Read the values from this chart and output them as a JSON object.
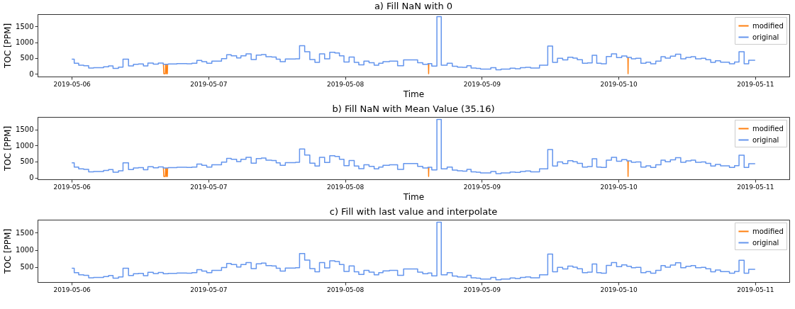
{
  "chart_data": [
    {
      "type": "step",
      "title": "a) Fill NaN with 0",
      "xlabel": "Time",
      "ylabel": "TOC [PPM]",
      "xlim": [
        "2019-05-05T18:00",
        "2019-05-11T06:00"
      ],
      "xticks": [
        "2019-05-06",
        "2019-05-07",
        "2019-05-08",
        "2019-05-09",
        "2019-05-10",
        "2019-05-11"
      ],
      "ylim": [
        -90,
        1890
      ],
      "yticks": [
        0,
        500,
        1000,
        1500
      ],
      "legend": "top right",
      "grid": false,
      "series": [
        {
          "name": "modified",
          "color": "#ff7f0e",
          "type": "line",
          "x": [
            "2019-05-06T16:06",
            "2019-05-06T16:10",
            "2019-05-06T16:26",
            "2019-05-06T16:30",
            "2019-05-06T16:33",
            "2019-05-06T16:36",
            "2019-05-06T16:39",
            "2019-05-06T16:47",
            "2019-05-06T16:50",
            "2019-05-06T16:53",
            "2019-05-08T14:38",
            "2019-05-08T14:40",
            "2019-05-08T14:42",
            "2019-05-08T14:45",
            "2019-05-10T01:39",
            "2019-05-10T01:41",
            "2019-05-10T01:43"
          ],
          "values": [
            300,
            0,
            0,
            300,
            null,
            300,
            0,
            0,
            300,
            null,
            320,
            0,
            320,
            null,
            520,
            0,
            520
          ]
        },
        {
          "name": "original",
          "color": "#6495ed",
          "type": "step",
          "x": [
            "2019-05-06T00:00",
            "2019-05-06T00:26",
            "2019-05-06T01:13",
            "2019-05-06T02:06",
            "2019-05-06T02:58",
            "2019-05-06T03:50",
            "2019-05-06T05:35",
            "2019-05-06T06:28",
            "2019-05-06T07:15",
            "2019-05-06T08:12",
            "2019-05-06T09:00",
            "2019-05-06T09:58",
            "2019-05-06T10:50",
            "2019-05-06T11:42",
            "2019-05-06T12:35",
            "2019-05-06T13:22",
            "2019-05-06T14:19",
            "2019-05-06T15:12",
            "2019-05-06T16:04",
            "2019-05-06T16:56",
            "2019-05-06T18:28",
            "2019-05-06T20:12",
            "2019-05-06T21:06",
            "2019-05-06T21:58",
            "2019-05-06T22:50",
            "2019-05-06T23:42",
            "2019-05-07T00:36",
            "2019-05-07T02:18",
            "2019-05-07T03:12",
            "2019-05-07T04:00",
            "2019-05-07T04:57",
            "2019-05-07T05:42",
            "2019-05-07T06:36",
            "2019-05-07T07:30",
            "2019-05-07T08:24",
            "2019-05-07T09:18",
            "2019-05-07T10:06",
            "2019-05-07T11:06",
            "2019-05-07T11:54",
            "2019-05-07T12:36",
            "2019-05-07T13:30",
            "2019-05-07T15:18",
            "2019-05-07T16:00",
            "2019-05-07T16:54",
            "2019-05-07T17:48",
            "2019-05-07T18:42",
            "2019-05-07T19:30",
            "2019-05-07T20:24",
            "2019-05-07T21:18",
            "2019-05-07T22:12",
            "2019-05-07T23:00",
            "2019-05-07T23:48",
            "2019-05-08T00:42",
            "2019-05-08T01:36",
            "2019-05-08T02:24",
            "2019-05-08T03:18",
            "2019-05-08T04:12",
            "2019-05-08T05:06",
            "2019-05-08T05:54",
            "2019-05-08T06:39",
            "2019-05-08T07:47",
            "2019-05-08T09:13",
            "2019-05-08T10:16",
            "2019-05-08T12:44",
            "2019-05-08T13:38",
            "2019-05-08T14:32",
            "2019-05-08T15:13",
            "2019-05-08T16:07",
            "2019-05-08T16:53",
            "2019-05-08T17:55",
            "2019-05-08T18:49",
            "2019-05-08T19:43",
            "2019-05-08T20:37",
            "2019-05-08T21:23",
            "2019-05-08T22:07",
            "2019-05-08T23:01",
            "2019-05-08T23:46",
            "2019-05-09T01:35",
            "2019-05-09T02:29",
            "2019-05-09T03:23",
            "2019-05-09T04:58",
            "2019-05-09T05:52",
            "2019-05-09T06:46",
            "2019-05-09T07:40",
            "2019-05-09T08:34",
            "2019-05-09T10:08",
            "2019-05-09T11:35",
            "2019-05-09T12:26",
            "2019-05-09T13:17",
            "2019-05-09T14:12",
            "2019-05-09T15:06",
            "2019-05-09T16:00",
            "2019-05-09T16:46",
            "2019-05-09T17:40",
            "2019-05-09T18:34",
            "2019-05-09T19:23",
            "2019-05-09T20:11",
            "2019-05-09T20:58",
            "2019-05-09T21:52",
            "2019-05-09T22:46",
            "2019-05-09T23:40",
            "2019-05-10T00:34",
            "2019-05-10T01:28",
            "2019-05-10T02:16",
            "2019-05-10T03:02",
            "2019-05-10T03:56",
            "2019-05-10T04:50",
            "2019-05-10T05:39",
            "2019-05-10T06:33",
            "2019-05-10T07:28",
            "2019-05-10T08:13",
            "2019-05-10T09:07",
            "2019-05-10T10:01",
            "2019-05-10T10:56",
            "2019-05-10T11:50",
            "2019-05-10T12:44",
            "2019-05-10T13:32",
            "2019-05-10T14:32",
            "2019-05-10T15:20",
            "2019-05-10T16:12",
            "2019-05-10T17:01",
            "2019-05-10T17:55",
            "2019-05-10T19:29",
            "2019-05-10T20:23",
            "2019-05-10T21:10",
            "2019-05-10T22:04",
            "2019-05-10T22:52",
            "2019-05-11T00:00"
          ],
          "values": [
            460,
            330,
            270,
            255,
            180,
            190,
            220,
            250,
            170,
            210,
            460,
            250,
            300,
            310,
            245,
            340,
            305,
            335,
            300,
            310,
            320,
            315,
            330,
            420,
            380,
            330,
            400,
            480,
            600,
            570,
            500,
            570,
            630,
            450,
            590,
            610,
            540,
            530,
            460,
            380,
            465,
            475,
            890,
            700,
            450,
            360,
            630,
            470,
            680,
            660,
            570,
            370,
            530,
            360,
            280,
            400,
            350,
            270,
            330,
            385,
            400,
            255,
            440,
            350,
            300,
            320,
            240,
            1810,
            270,
            330,
            235,
            210,
            200,
            255,
            180,
            170,
            145,
            190,
            125,
            145,
            175,
            160,
            190,
            205,
            180,
            270,
            875,
            360,
            490,
            440,
            525,
            495,
            445,
            330,
            345,
            585,
            330,
            315,
            545,
            630,
            510,
            560,
            520,
            475,
            490,
            330,
            365,
            315,
            400,
            540,
            495,
            555,
            620,
            475,
            520,
            540,
            475,
            490,
            445,
            360,
            410,
            365,
            315,
            370,
            695,
            315,
            430,
            430
          ]
        }
      ]
    },
    {
      "type": "step",
      "title": "b) Fill NaN with Mean Value (35.16)",
      "xlabel": "Time",
      "ylabel": "TOC [PPM]",
      "xlim": [
        "2019-05-05T18:00",
        "2019-05-11T06:00"
      ],
      "xticks": [
        "2019-05-06",
        "2019-05-07",
        "2019-05-08",
        "2019-05-09",
        "2019-05-10",
        "2019-05-11"
      ],
      "ylim": [
        -53,
        1888
      ],
      "yticks": [
        0,
        500,
        1000,
        1500
      ],
      "legend": "top right",
      "grid": false,
      "series": [
        {
          "name": "modified",
          "color": "#ff7f0e",
          "type": "line",
          "x": [
            "2019-05-06T16:06",
            "2019-05-06T16:10",
            "2019-05-06T16:26",
            "2019-05-06T16:30",
            "2019-05-06T16:33",
            "2019-05-06T16:36",
            "2019-05-06T16:39",
            "2019-05-06T16:47",
            "2019-05-06T16:50",
            "2019-05-06T16:53",
            "2019-05-08T14:38",
            "2019-05-08T14:40",
            "2019-05-08T14:42",
            "2019-05-08T14:45",
            "2019-05-10T01:39",
            "2019-05-10T01:41",
            "2019-05-10T01:43"
          ],
          "values": [
            300,
            35.16,
            35.16,
            300,
            null,
            300,
            35.16,
            35.16,
            300,
            null,
            320,
            35.16,
            320,
            null,
            520,
            35.16,
            520
          ]
        },
        {
          "name": "original",
          "color": "#6495ed",
          "type": "step",
          "x": [
            "2019-05-06T00:00",
            "2019-05-06T00:26",
            "2019-05-06T01:13",
            "2019-05-06T02:06",
            "2019-05-06T02:58",
            "2019-05-06T03:50",
            "2019-05-06T05:35",
            "2019-05-06T06:28",
            "2019-05-06T07:15",
            "2019-05-06T08:12",
            "2019-05-06T09:00",
            "2019-05-06T09:58",
            "2019-05-06T10:50",
            "2019-05-06T11:42",
            "2019-05-06T12:35",
            "2019-05-06T13:22",
            "2019-05-06T14:19",
            "2019-05-06T15:12",
            "2019-05-06T16:04",
            "2019-05-06T16:56",
            "2019-05-06T18:28",
            "2019-05-06T20:12",
            "2019-05-06T21:06",
            "2019-05-06T21:58",
            "2019-05-06T22:50",
            "2019-05-06T23:42",
            "2019-05-07T00:36",
            "2019-05-07T02:18",
            "2019-05-07T03:12",
            "2019-05-07T04:00",
            "2019-05-07T04:57",
            "2019-05-07T05:42",
            "2019-05-07T06:36",
            "2019-05-07T07:30",
            "2019-05-07T08:24",
            "2019-05-07T09:18",
            "2019-05-07T10:06",
            "2019-05-07T11:06",
            "2019-05-07T11:54",
            "2019-05-07T12:36",
            "2019-05-07T13:30",
            "2019-05-07T15:18",
            "2019-05-07T16:00",
            "2019-05-07T16:54",
            "2019-05-07T17:48",
            "2019-05-07T18:42",
            "2019-05-07T19:30",
            "2019-05-07T20:24",
            "2019-05-07T21:18",
            "2019-05-07T22:12",
            "2019-05-07T23:00",
            "2019-05-07T23:48",
            "2019-05-08T00:42",
            "2019-05-08T01:36",
            "2019-05-08T02:24",
            "2019-05-08T03:18",
            "2019-05-08T04:12",
            "2019-05-08T05:06",
            "2019-05-08T05:54",
            "2019-05-08T06:39",
            "2019-05-08T07:47",
            "2019-05-08T09:13",
            "2019-05-08T10:16",
            "2019-05-08T12:44",
            "2019-05-08T13:38",
            "2019-05-08T14:32",
            "2019-05-08T15:13",
            "2019-05-08T16:07",
            "2019-05-08T16:53",
            "2019-05-08T17:55",
            "2019-05-08T18:49",
            "2019-05-08T19:43",
            "2019-05-08T20:37",
            "2019-05-08T21:23",
            "2019-05-08T22:07",
            "2019-05-08T23:01",
            "2019-05-08T23:46",
            "2019-05-09T01:35",
            "2019-05-09T02:29",
            "2019-05-09T03:23",
            "2019-05-09T04:58",
            "2019-05-09T05:52",
            "2019-05-09T06:46",
            "2019-05-09T07:40",
            "2019-05-09T08:34",
            "2019-05-09T10:08",
            "2019-05-09T11:35",
            "2019-05-09T12:26",
            "2019-05-09T13:17",
            "2019-05-09T14:12",
            "2019-05-09T15:06",
            "2019-05-09T16:00",
            "2019-05-09T16:46",
            "2019-05-09T17:40",
            "2019-05-09T18:34",
            "2019-05-09T19:23",
            "2019-05-09T20:11",
            "2019-05-09T20:58",
            "2019-05-09T21:52",
            "2019-05-09T22:46",
            "2019-05-09T23:40",
            "2019-05-10T00:34",
            "2019-05-10T01:28",
            "2019-05-10T02:16",
            "2019-05-10T03:02",
            "2019-05-10T03:56",
            "2019-05-10T04:50",
            "2019-05-10T05:39",
            "2019-05-10T06:33",
            "2019-05-10T07:28",
            "2019-05-10T08:13",
            "2019-05-10T09:07",
            "2019-05-10T10:01",
            "2019-05-10T10:56",
            "2019-05-10T11:50",
            "2019-05-10T12:44",
            "2019-05-10T13:32",
            "2019-05-10T14:32",
            "2019-05-10T15:20",
            "2019-05-10T16:12",
            "2019-05-10T17:01",
            "2019-05-10T17:55",
            "2019-05-10T19:29",
            "2019-05-10T20:23",
            "2019-05-10T21:10",
            "2019-05-10T22:04",
            "2019-05-10T22:52",
            "2019-05-11T00:00"
          ],
          "values": [
            460,
            330,
            270,
            255,
            180,
            190,
            220,
            250,
            170,
            210,
            460,
            250,
            300,
            310,
            245,
            340,
            305,
            335,
            300,
            310,
            320,
            315,
            330,
            420,
            380,
            330,
            400,
            480,
            600,
            570,
            500,
            570,
            630,
            450,
            590,
            610,
            540,
            530,
            460,
            380,
            465,
            475,
            890,
            700,
            450,
            360,
            630,
            470,
            680,
            660,
            570,
            370,
            530,
            360,
            280,
            400,
            350,
            270,
            330,
            385,
            400,
            255,
            440,
            350,
            300,
            320,
            240,
            1810,
            270,
            330,
            235,
            210,
            200,
            255,
            180,
            170,
            145,
            190,
            125,
            145,
            175,
            160,
            190,
            205,
            180,
            270,
            875,
            360,
            490,
            440,
            525,
            495,
            445,
            330,
            345,
            585,
            330,
            315,
            545,
            630,
            510,
            560,
            520,
            475,
            490,
            330,
            365,
            315,
            400,
            540,
            495,
            555,
            620,
            475,
            520,
            540,
            475,
            490,
            445,
            360,
            410,
            365,
            315,
            370,
            695,
            315,
            430,
            430
          ]
        }
      ]
    },
    {
      "type": "step",
      "title": "c) Fill with last value and interpolate",
      "ylabel": "TOC [PPM]",
      "xlim": [
        "2019-05-05T18:00",
        "2019-05-11T06:00"
      ],
      "xticks": [
        "2019-05-06",
        "2019-05-07",
        "2019-05-08",
        "2019-05-09",
        "2019-05-10",
        "2019-05-11"
      ],
      "ylim": [
        57,
        1883
      ],
      "yticks": [
        500,
        1000,
        1500
      ],
      "legend": "top right",
      "grid": false,
      "series": [
        {
          "name": "modified",
          "color": "#ff7f0e",
          "type": "line"
        },
        {
          "name": "original",
          "color": "#6495ed",
          "type": "step",
          "x": [
            "2019-05-06T00:00",
            "2019-05-06T00:26",
            "2019-05-06T01:13",
            "2019-05-06T02:06",
            "2019-05-06T02:58",
            "2019-05-06T03:50",
            "2019-05-06T05:35",
            "2019-05-06T06:28",
            "2019-05-06T07:15",
            "2019-05-06T08:12",
            "2019-05-06T09:00",
            "2019-05-06T09:58",
            "2019-05-06T10:50",
            "2019-05-06T11:42",
            "2019-05-06T12:35",
            "2019-05-06T13:22",
            "2019-05-06T14:19",
            "2019-05-06T15:12",
            "2019-05-06T16:04",
            "2019-05-06T16:56",
            "2019-05-06T18:28",
            "2019-05-06T20:12",
            "2019-05-06T21:06",
            "2019-05-06T21:58",
            "2019-05-06T22:50",
            "2019-05-06T23:42",
            "2019-05-07T00:36",
            "2019-05-07T02:18",
            "2019-05-07T03:12",
            "2019-05-07T04:00",
            "2019-05-07T04:57",
            "2019-05-07T05:42",
            "2019-05-07T06:36",
            "2019-05-07T07:30",
            "2019-05-07T08:24",
            "2019-05-07T09:18",
            "2019-05-07T10:06",
            "2019-05-07T11:06",
            "2019-05-07T11:54",
            "2019-05-07T12:36",
            "2019-05-07T13:30",
            "2019-05-07T15:18",
            "2019-05-07T16:00",
            "2019-05-07T16:54",
            "2019-05-07T17:48",
            "2019-05-07T18:42",
            "2019-05-07T19:30",
            "2019-05-07T20:24",
            "2019-05-07T21:18",
            "2019-05-07T22:12",
            "2019-05-07T23:00",
            "2019-05-07T23:48",
            "2019-05-08T00:42",
            "2019-05-08T01:36",
            "2019-05-08T02:24",
            "2019-05-08T03:18",
            "2019-05-08T04:12",
            "2019-05-08T05:06",
            "2019-05-08T05:54",
            "2019-05-08T06:39",
            "2019-05-08T07:47",
            "2019-05-08T09:13",
            "2019-05-08T10:16",
            "2019-05-08T12:44",
            "2019-05-08T13:38",
            "2019-05-08T14:32",
            "2019-05-08T15:13",
            "2019-05-08T16:07",
            "2019-05-08T16:53",
            "2019-05-08T17:55",
            "2019-05-08T18:49",
            "2019-05-08T19:43",
            "2019-05-08T20:37",
            "2019-05-08T21:23",
            "2019-05-08T22:07",
            "2019-05-08T23:01",
            "2019-05-08T23:46",
            "2019-05-09T01:35",
            "2019-05-09T02:29",
            "2019-05-09T03:23",
            "2019-05-09T04:58",
            "2019-05-09T05:52",
            "2019-05-09T06:46",
            "2019-05-09T07:40",
            "2019-05-09T08:34",
            "2019-05-09T10:08",
            "2019-05-09T11:35",
            "2019-05-09T12:26",
            "2019-05-09T13:17",
            "2019-05-09T14:12",
            "2019-05-09T15:06",
            "2019-05-09T16:00",
            "2019-05-09T16:46",
            "2019-05-09T17:40",
            "2019-05-09T18:34",
            "2019-05-09T19:23",
            "2019-05-09T20:11",
            "2019-05-09T20:58",
            "2019-05-09T21:52",
            "2019-05-09T22:46",
            "2019-05-09T23:40",
            "2019-05-10T00:34",
            "2019-05-10T01:28",
            "2019-05-10T02:16",
            "2019-05-10T03:02",
            "2019-05-10T03:56",
            "2019-05-10T04:50",
            "2019-05-10T05:39",
            "2019-05-10T06:33",
            "2019-05-10T07:28",
            "2019-05-10T08:13",
            "2019-05-10T09:07",
            "2019-05-10T10:01",
            "2019-05-10T10:56",
            "2019-05-10T11:50",
            "2019-05-10T12:44",
            "2019-05-10T13:32",
            "2019-05-10T14:32",
            "2019-05-10T15:20",
            "2019-05-10T16:12",
            "2019-05-10T17:01",
            "2019-05-10T17:55",
            "2019-05-10T19:29",
            "2019-05-10T20:23",
            "2019-05-10T21:10",
            "2019-05-10T22:04",
            "2019-05-10T22:52",
            "2019-05-11T00:00"
          ],
          "values": [
            460,
            330,
            270,
            255,
            180,
            190,
            220,
            250,
            170,
            210,
            460,
            250,
            300,
            310,
            245,
            340,
            305,
            335,
            300,
            310,
            320,
            315,
            330,
            420,
            380,
            330,
            400,
            480,
            600,
            570,
            500,
            570,
            630,
            450,
            590,
            610,
            540,
            530,
            460,
            380,
            465,
            475,
            890,
            700,
            450,
            360,
            630,
            470,
            680,
            660,
            570,
            370,
            530,
            360,
            280,
            400,
            350,
            270,
            330,
            385,
            400,
            255,
            440,
            350,
            300,
            320,
            240,
            1810,
            270,
            330,
            235,
            210,
            200,
            255,
            180,
            170,
            145,
            190,
            125,
            145,
            175,
            160,
            190,
            205,
            180,
            270,
            875,
            360,
            490,
            440,
            525,
            495,
            445,
            330,
            345,
            585,
            330,
            315,
            545,
            630,
            510,
            560,
            520,
            475,
            490,
            330,
            365,
            315,
            400,
            540,
            495,
            555,
            620,
            475,
            520,
            540,
            475,
            490,
            445,
            360,
            410,
            365,
            315,
            370,
            695,
            315,
            430,
            430
          ]
        }
      ]
    }
  ]
}
